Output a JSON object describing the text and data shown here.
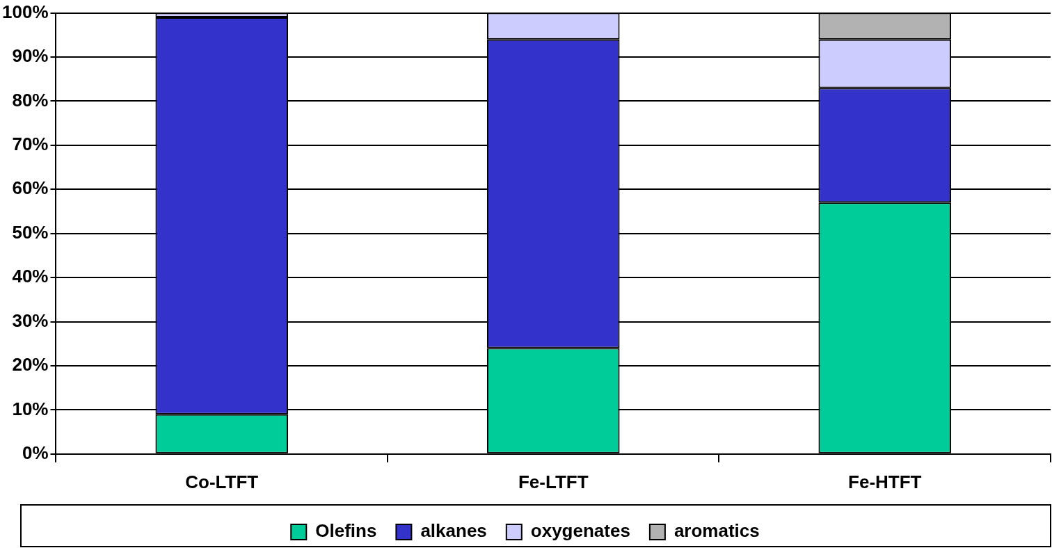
{
  "chart_data": {
    "type": "bar",
    "stacked": true,
    "categories": [
      "Co-LTFT",
      "Fe-LTFT",
      "Fe-HTFT"
    ],
    "series": [
      {
        "name": "Olefins",
        "color": "#00cc99",
        "values": [
          9,
          24,
          57
        ]
      },
      {
        "name": "alkanes",
        "color": "#3333cc",
        "values": [
          90,
          70,
          26
        ]
      },
      {
        "name": "oxygenates",
        "color": "#ccccff",
        "values": [
          1,
          6,
          11
        ]
      },
      {
        "name": "aromatics",
        "color": "#b2b2b2",
        "values": [
          0,
          0,
          6
        ]
      }
    ],
    "ylim": [
      0,
      100
    ],
    "yticks": [
      {
        "value": 0,
        "label": "0%"
      },
      {
        "value": 10,
        "label": "10%"
      },
      {
        "value": 20,
        "label": "20%"
      },
      {
        "value": 30,
        "label": "30%"
      },
      {
        "value": 40,
        "label": "40%"
      },
      {
        "value": 50,
        "label": "50%"
      },
      {
        "value": 60,
        "label": "60%"
      },
      {
        "value": 70,
        "label": "70%"
      },
      {
        "value": 80,
        "label": "80%"
      },
      {
        "value": 90,
        "label": "90%"
      },
      {
        "value": 100,
        "label": "100%"
      }
    ],
    "grid": "y",
    "legend": "bottom"
  }
}
